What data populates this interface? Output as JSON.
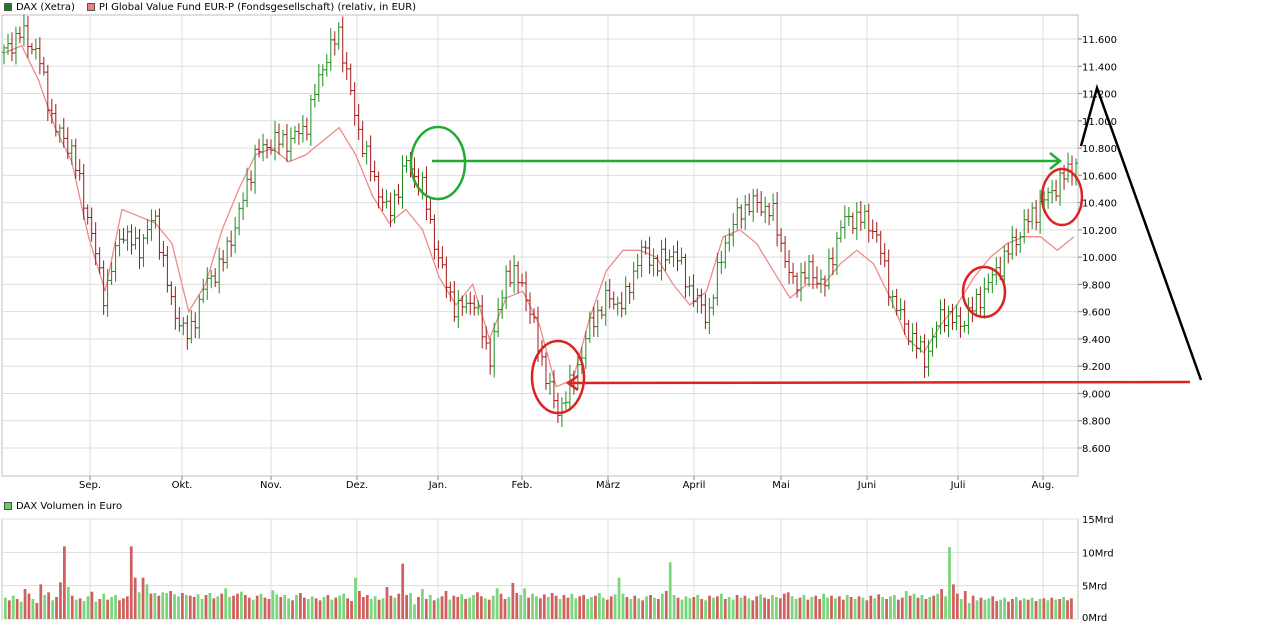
{
  "legend": {
    "dax": {
      "label": "DAX (Xetra)",
      "color": "#1f7a1f"
    },
    "fund": {
      "label": "PI Global Value Fund EUR-P (Fondsgesellschaft) (relativ, in EUR)",
      "color": "#f08080"
    }
  },
  "volume_legend": {
    "label": "DAX Volumen in Euro",
    "color": "#66cc66"
  },
  "colors": {
    "up": "#1e8c1e",
    "down": "#a01818",
    "fund_line": "#f08a8a",
    "vol_up": "#7ad67a",
    "vol_down": "#d06060",
    "grid": "#dddddd",
    "annot_green": "#22aa33",
    "annot_red": "#dd2222",
    "annot_black": "#000000"
  },
  "chart_data": [
    {
      "type": "line",
      "title": "",
      "x_tick_labels": [
        "Sep.",
        "Okt.",
        "Nov.",
        "Dez.",
        "Jan.",
        "Feb.",
        "März",
        "April",
        "Mai",
        "Juni",
        "Juli",
        "Aug."
      ],
      "y_tick_labels": [
        "8.600",
        "8.800",
        "9.000",
        "9.200",
        "9.400",
        "9.600",
        "9.800",
        "10.000",
        "10.200",
        "10.400",
        "10.600",
        "10.800",
        "11.000",
        "11.200",
        "11.400",
        "11.600"
      ],
      "ylim": [
        8400,
        11750
      ],
      "grid": true,
      "series": [
        {
          "name": "DAX (Xetra)",
          "kind": "ohlc",
          "months": [
            "Aug.",
            "Sep.",
            "Okt.",
            "Nov.",
            "Dez.",
            "Jan.",
            "Feb.",
            "März",
            "April",
            "Mai",
            "Juni",
            "Juli",
            "Aug."
          ],
          "close_path": [
            11500,
            11650,
            11500,
            10950,
            10800,
            10300,
            9700,
            10200,
            10050,
            10300,
            9650,
            9400,
            9800,
            9950,
            10300,
            10750,
            10850,
            10850,
            10950,
            11400,
            11650,
            11000,
            10600,
            10300,
            10700,
            10500,
            9950,
            9600,
            9700,
            9250,
            9900,
            9800,
            9300,
            8850,
            9100,
            9500,
            9700,
            9650,
            10050,
            9950,
            10050,
            9750,
            9550,
            10100,
            10350,
            10400,
            10300,
            9800,
            9900,
            9800,
            10250,
            10300,
            10200,
            9700,
            9450,
            9250,
            9600,
            9500,
            9650,
            9850,
            10050,
            10250,
            10400,
            10550,
            10700
          ]
        },
        {
          "name": "PI Global Value Fund EUR-P (Fondsgesellschaft) (relativ, in EUR)",
          "kind": "line",
          "values": [
            11500,
            11550,
            11300,
            10950,
            10700,
            10150,
            9750,
            10350,
            10300,
            10250,
            10100,
            9600,
            9800,
            10200,
            10500,
            10750,
            10800,
            10700,
            10750,
            10850,
            10950,
            10750,
            10450,
            10250,
            10350,
            10200,
            9850,
            9650,
            9800,
            9400,
            9700,
            9750,
            9500,
            9050,
            9100,
            9550,
            9900,
            10050,
            10050,
            10000,
            9800,
            9650,
            9750,
            10150,
            10200,
            10100,
            9900,
            9700,
            9800,
            9800,
            9950,
            10050,
            9950,
            9700,
            9400,
            9300,
            9500,
            9650,
            9850,
            10000,
            10100,
            10150,
            10150,
            10050,
            10150
          ]
        }
      ]
    },
    {
      "type": "bar",
      "title": "",
      "y_tick_labels": [
        "0Mrd",
        "5Mrd",
        "10Mrd",
        "15Mrd"
      ],
      "ylim": [
        0,
        15
      ],
      "series": [
        {
          "name": "DAX Volumen in Euro",
          "values": [
            3.2,
            2.8,
            3.5,
            3.0,
            2.6,
            4.5,
            3.8,
            3.0,
            2.4,
            5.2,
            3.6,
            4.0,
            2.8,
            3.3,
            5.5,
            10.9,
            4.8,
            3.5,
            2.9,
            3.1,
            2.7,
            3.4,
            4.1,
            2.6,
            3.0,
            3.8,
            2.9,
            3.3,
            3.6,
            2.8,
            3.1,
            3.4,
            10.9,
            6.2,
            4.0,
            6.2,
            5.2,
            3.8,
            3.9,
            3.5,
            4.0,
            3.9,
            4.2,
            3.7,
            3.4,
            3.9,
            3.6,
            3.5,
            3.3,
            3.7,
            3.0,
            3.6,
            3.9,
            3.1,
            3.4,
            3.8,
            4.6,
            3.3,
            3.5,
            3.8,
            4.1,
            3.6,
            3.2,
            2.9,
            3.5,
            3.8,
            3.2,
            3.0,
            4.3,
            3.7,
            3.3,
            3.6,
            3.1,
            2.8,
            3.6,
            3.9,
            3.2,
            3.0,
            3.4,
            3.1,
            2.8,
            3.3,
            3.6,
            2.9,
            3.2,
            3.5,
            3.8,
            3.1,
            2.7,
            6.2,
            4.2,
            3.3,
            3.6,
            3.0,
            3.4,
            2.9,
            3.1,
            4.8,
            3.5,
            3.2,
            3.8,
            8.3,
            3.6,
            3.9,
            2.2,
            3.3,
            4.5,
            3.0,
            3.6,
            2.8,
            3.1,
            3.4,
            4.2,
            2.9,
            3.5,
            3.3,
            3.7,
            3.0,
            3.2,
            3.6,
            4.0,
            3.4,
            3.1,
            2.9,
            3.5,
            4.6,
            3.8,
            3.0,
            3.3,
            5.4,
            3.9,
            3.6,
            4.6,
            3.2,
            3.8,
            3.4,
            3.1,
            3.7,
            3.3,
            3.9,
            3.5,
            3.0,
            3.6,
            3.2,
            3.8,
            3.1,
            3.4,
            3.6,
            3.0,
            3.3,
            3.5,
            3.9,
            3.2,
            2.9,
            3.4,
            3.7,
            6.2,
            3.8,
            3.3,
            3.0,
            3.5,
            3.1,
            2.8,
            3.4,
            3.6,
            3.2,
            3.0,
            3.8,
            4.2,
            8.5,
            3.6,
            3.2,
            2.9,
            3.4,
            3.1,
            3.3,
            3.6,
            3.0,
            2.8,
            3.5,
            3.2,
            3.4,
            3.8,
            3.0,
            3.3,
            2.9,
            3.6,
            3.2,
            3.5,
            3.1,
            2.8,
            3.4,
            3.7,
            3.2,
            3.0,
            3.6,
            3.3,
            3.1,
            3.8,
            4.0,
            3.4,
            3.0,
            3.2,
            3.6,
            2.9,
            3.3,
            3.5,
            3.0,
            3.8,
            3.2,
            3.5,
            3.1,
            3.4,
            2.9,
            3.6,
            3.3,
            3.0,
            3.4,
            3.2,
            2.8,
            3.5,
            3.1,
            3.7,
            3.3,
            3.0,
            3.4,
            3.6,
            2.9,
            3.2,
            4.2,
            3.5,
            3.8,
            3.2,
            3.6,
            3.0,
            3.3,
            3.5,
            3.8,
            4.5,
            3.4,
            10.8,
            5.2,
            3.8,
            3.0,
            4.2,
            2.4,
            3.5,
            2.8,
            3.2,
            2.9,
            3.1,
            3.4,
            2.7,
            2.9,
            3.2,
            2.6,
            3.0,
            3.3,
            2.8,
            3.1,
            2.9,
            3.2,
            2.7,
            3.0,
            3.1,
            2.8,
            3.2,
            2.9,
            3.0,
            3.3,
            2.8,
            3.1
          ],
          "up_flags": "GRGRGRRGRRGRGRRRGRGRGGRGRGRGGRRRRRGRGRGRGGRGGRGRRGGRGRGRGGRRGRRGRGRRGGRGGRGRRGGRRGRGRGGRRGRRRGGRGRRGRRRGGRGRGRGRRGRRGRGGRRGRGGRRGRRGGRGGRRGRRGRRGGRRGGRGGRRGGGRGRGRGRGRGRGGRGGGRGRGRGRGRGGRGRGRRGRRGGRRRGGRGRGRRGGRGRRGRGRGRRGRGRGGRRGRGRGRGRGRGGRRGRGRGRGGRRGGRRGRGRGRGR"
        }
      ]
    }
  ]
}
